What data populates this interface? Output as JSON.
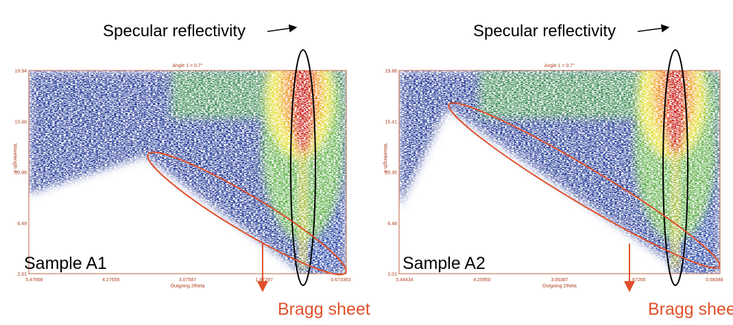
{
  "panels": [
    {
      "title": "Angle 1 = 0.7°",
      "sample": "Sample A1",
      "y_axis_label": "Wavelength Å",
      "x_axis_label": "Outgoing 2theta",
      "y_ticks": [
        "19.94",
        "15.46",
        "10.98",
        "6.49",
        "2.01"
      ],
      "x_ticks": [
        "5.47666",
        "4.27656",
        "3.07587",
        "1.87297",
        "0.673363"
      ],
      "specular_label": "Specular reflectivity",
      "bragg_label": "Bragg sheet"
    },
    {
      "title": "Angle 1 = 0.7°",
      "sample": "Sample A2",
      "y_axis_label": "Wavelength Å",
      "x_axis_label": "Outgoing 2theta",
      "y_ticks": [
        "19.88",
        "15.41",
        "10.95",
        "6.48",
        "2.01"
      ],
      "x_ticks": [
        "5.44434",
        "4.25950",
        "3.06387",
        "1.87265",
        "0.68348"
      ],
      "specular_label": "Specular reflectivity",
      "bragg_label": "Bragg sheet"
    }
  ]
}
